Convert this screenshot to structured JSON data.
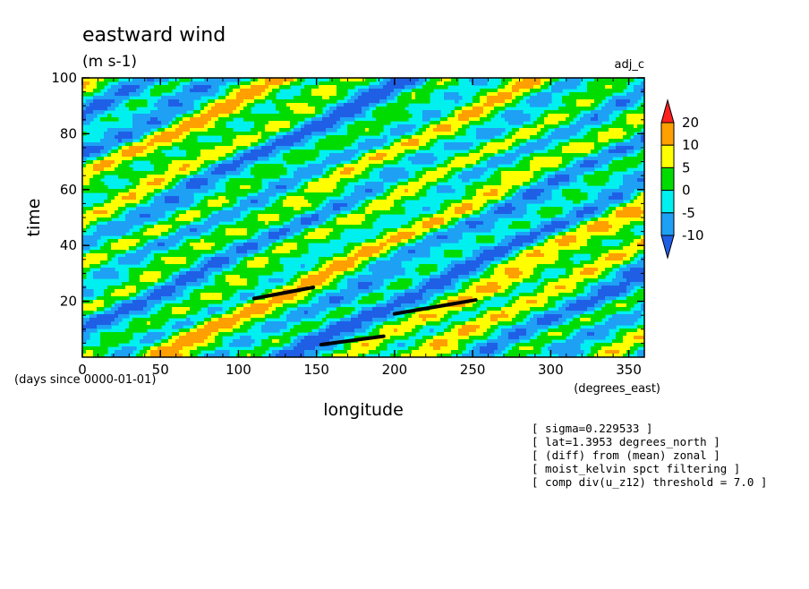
{
  "chart_data": {
    "type": "heatmap",
    "title": "eastward wind",
    "units_label": "(m s-1)",
    "experiment_label": "adj_c",
    "xlabel": "longitude",
    "ylabel": "time",
    "x_units": "(degrees_east)",
    "y_units": "(days since 0000-01-01)",
    "xlim": [
      0,
      360
    ],
    "ylim": [
      0,
      100
    ],
    "x_ticks": [
      "0",
      "50",
      "100",
      "150",
      "200",
      "250",
      "300",
      "350"
    ],
    "y_ticks": [
      "20",
      "40",
      "60",
      "80",
      "100"
    ],
    "colorbar": {
      "levels": [
        -10,
        -5,
        0,
        5,
        10,
        20
      ],
      "level_labels": [
        "-10",
        "-5",
        "0",
        "5",
        "10",
        "20"
      ],
      "colors": [
        "#1f5fe6",
        "#1ea0f5",
        "#00f0f0",
        "#00dc00",
        "#ffff00",
        "#ff9f00",
        "#ff2020"
      ],
      "extend": "both"
    },
    "tracked_segments": [
      {
        "x": [
          110,
          148
        ],
        "y": [
          21,
          25
        ]
      },
      {
        "x": [
          153,
          193
        ],
        "y": [
          4.5,
          7.5
        ]
      },
      {
        "x": [
          200,
          252
        ],
        "y": [
          15.5,
          20.5
        ]
      }
    ],
    "annotations": [
      "[ sigma=0.229533 ]",
      "[ lat=1.3953 degrees_north ]",
      "[ (diff) from (mean) zonal ]",
      "[ moist_kelvin spct filtering ]",
      "[ comp div(u_z12) threshold = 7.0 ]"
    ]
  }
}
